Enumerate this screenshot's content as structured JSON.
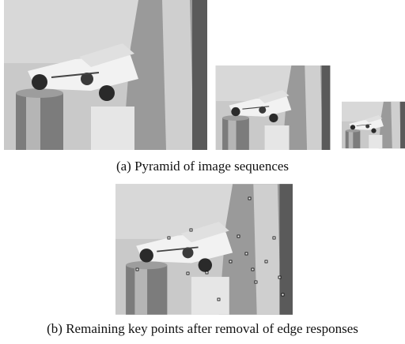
{
  "figure": {
    "captions": [
      "(a) Pyramid of image sequences",
      "(b) Remaining key points after removal of edge responses"
    ]
  }
}
